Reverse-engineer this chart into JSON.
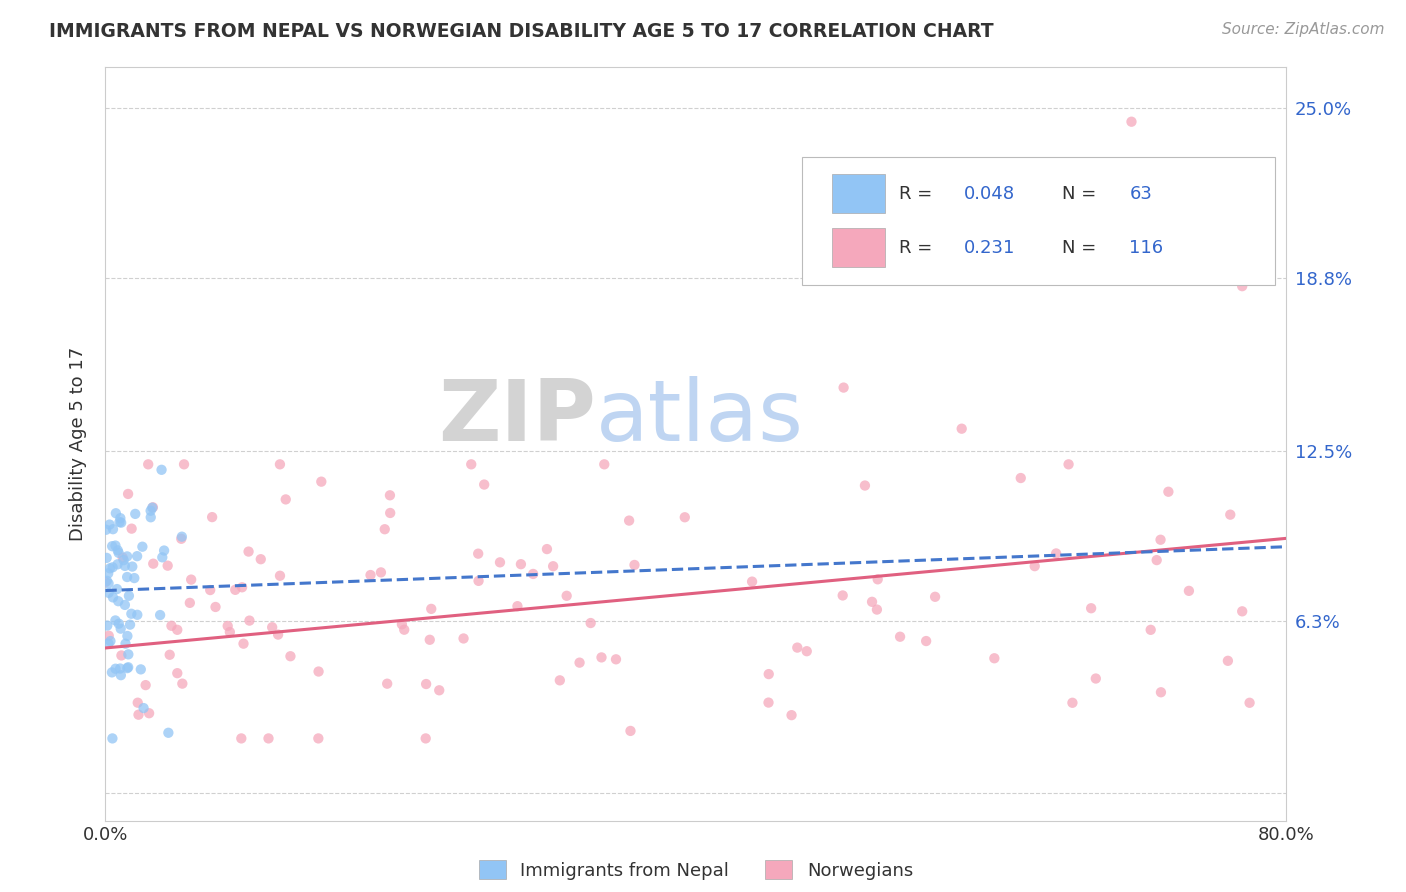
{
  "title": "IMMIGRANTS FROM NEPAL VS NORWEGIAN DISABILITY AGE 5 TO 17 CORRELATION CHART",
  "source": "Source: ZipAtlas.com",
  "ylabel": "Disability Age 5 to 17",
  "nepal_R": "0.048",
  "nepal_N": "63",
  "norway_R": "0.231",
  "norway_N": "116",
  "xmin": 0.0,
  "xmax": 0.8,
  "ymin": -0.01,
  "ymax": 0.265,
  "ytick_vals": [
    0.0,
    0.063,
    0.125,
    0.188,
    0.25
  ],
  "ytick_labels": [
    "",
    "6.3%",
    "12.5%",
    "18.8%",
    "25.0%"
  ],
  "xtick_vals": [
    0.0,
    0.8
  ],
  "xtick_labels": [
    "0.0%",
    "80.0%"
  ],
  "nepal_color": "#92c5f5",
  "norway_color": "#f5a8bc",
  "nepal_line_color": "#4477cc",
  "norway_line_color": "#e06080",
  "background_color": "#ffffff",
  "grid_color": "#d0d0d0",
  "border_color": "#cccccc",
  "right_tick_color": "#3366cc",
  "title_color": "#333333",
  "source_color": "#999999",
  "label_color": "#333333"
}
